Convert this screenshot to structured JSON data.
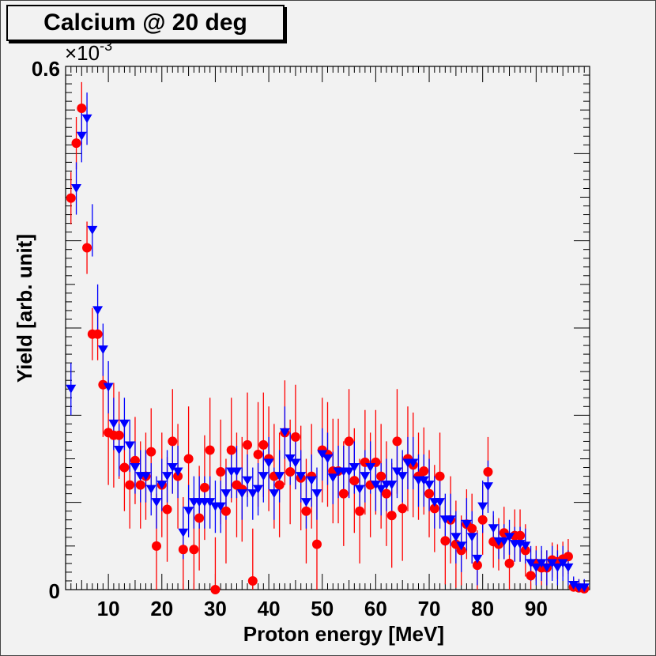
{
  "chart_data": {
    "type": "scatter",
    "title": "Calcium @ 20 deg",
    "xlabel": "Proton energy [MeV]",
    "ylabel": "Yield [arb. unit]",
    "y_multiplier": "×10",
    "y_exponent": "-3",
    "xlim": [
      2,
      100
    ],
    "ylim": [
      0,
      0.6
    ],
    "x_ticks": [
      10,
      20,
      30,
      40,
      50,
      60,
      70,
      80,
      90
    ],
    "y_tick_labels": [
      "0",
      "0.6"
    ],
    "series": [
      {
        "name": "red circles",
        "color": "#ff0000",
        "marker": "circle",
        "points": [
          [
            3,
            0.449,
            0.03
          ],
          [
            4,
            0.512,
            0.03
          ],
          [
            5,
            0.552,
            0.03
          ],
          [
            6,
            0.392,
            0.03
          ],
          [
            7,
            0.293,
            0.03
          ],
          [
            8,
            0.293,
            0.03
          ],
          [
            9,
            0.235,
            0.06
          ],
          [
            10,
            0.18,
            0.06
          ],
          [
            11,
            0.177,
            0.06
          ],
          [
            12,
            0.177,
            0.05
          ],
          [
            13,
            0.14,
            0.05
          ],
          [
            14,
            0.12,
            0.05
          ],
          [
            15,
            0.148,
            0.05
          ],
          [
            16,
            0.12,
            0.05
          ],
          [
            17,
            0.13,
            0.05
          ],
          [
            18,
            0.158,
            0.05
          ],
          [
            19,
            0.05,
            0.06
          ],
          [
            20,
            0.12,
            0.06
          ],
          [
            21,
            0.092,
            0.06
          ],
          [
            22,
            0.17,
            0.06
          ],
          [
            23,
            0.13,
            0.06
          ],
          [
            24,
            0.046,
            0.06
          ],
          [
            25,
            0.15,
            0.06
          ],
          [
            26,
            0.046,
            0.06
          ],
          [
            27,
            0.082,
            0.06
          ],
          [
            28,
            0.117,
            0.06
          ],
          [
            29,
            0.16,
            0.06
          ],
          [
            30,
            0,
            0.06
          ],
          [
            31,
            0.135,
            0.06
          ],
          [
            32,
            0.09,
            0.06
          ],
          [
            33,
            0.16,
            0.06
          ],
          [
            34,
            0.12,
            0.06
          ],
          [
            35,
            0.115,
            0.06
          ],
          [
            36,
            0.166,
            0.06
          ],
          [
            37,
            0.01,
            0.06
          ],
          [
            38,
            0.155,
            0.06
          ],
          [
            39,
            0.166,
            0.06
          ],
          [
            40,
            0.15,
            0.06
          ],
          [
            41,
            0.13,
            0.06
          ],
          [
            42,
            0.12,
            0.06
          ],
          [
            43,
            0.18,
            0.06
          ],
          [
            44,
            0.135,
            0.06
          ],
          [
            45,
            0.175,
            0.06
          ],
          [
            46,
            0.128,
            0.06
          ],
          [
            47,
            0.09,
            0.06
          ],
          [
            48,
            0.13,
            0.06
          ],
          [
            49,
            0.052,
            0.06
          ],
          [
            50,
            0.16,
            0.06
          ],
          [
            51,
            0.155,
            0.06
          ],
          [
            52,
            0.136,
            0.06
          ],
          [
            53,
            0.136,
            0.06
          ],
          [
            54,
            0.11,
            0.06
          ],
          [
            55,
            0.17,
            0.06
          ],
          [
            56,
            0.125,
            0.06
          ],
          [
            57,
            0.09,
            0.06
          ],
          [
            58,
            0.146,
            0.06
          ],
          [
            59,
            0.12,
            0.06
          ],
          [
            60,
            0.146,
            0.06
          ],
          [
            61,
            0.13,
            0.06
          ],
          [
            62,
            0.11,
            0.06
          ],
          [
            63,
            0.085,
            0.06
          ],
          [
            64,
            0.17,
            0.06
          ],
          [
            65,
            0.093,
            0.06
          ],
          [
            66,
            0.15,
            0.06
          ],
          [
            67,
            0.143,
            0.06
          ],
          [
            68,
            0.13,
            0.05
          ],
          [
            69,
            0.136,
            0.05
          ],
          [
            70,
            0.11,
            0.05
          ],
          [
            71,
            0.093,
            0.05
          ],
          [
            72,
            0.13,
            0.05
          ],
          [
            73,
            0.056,
            0.05
          ],
          [
            74,
            0.08,
            0.05
          ],
          [
            75,
            0.052,
            0.05
          ],
          [
            76,
            0.045,
            0.04
          ],
          [
            77,
            0.075,
            0.04
          ],
          [
            78,
            0.07,
            0.04
          ],
          [
            79,
            0.028,
            0.04
          ],
          [
            80,
            0.08,
            0.04
          ],
          [
            81,
            0.135,
            0.04
          ],
          [
            82,
            0.055,
            0.03
          ],
          [
            83,
            0.052,
            0.03
          ],
          [
            84,
            0.065,
            0.03
          ],
          [
            85,
            0.03,
            0.03
          ],
          [
            86,
            0.062,
            0.03
          ],
          [
            87,
            0.062,
            0.03
          ],
          [
            88,
            0.045,
            0.03
          ],
          [
            89,
            0.016,
            0.02
          ],
          [
            90,
            0.03,
            0.02
          ],
          [
            91,
            0.025,
            0.02
          ],
          [
            92,
            0.025,
            0.02
          ],
          [
            93,
            0.034,
            0.02
          ],
          [
            94,
            0.032,
            0.02
          ],
          [
            95,
            0.035,
            0.02
          ],
          [
            96,
            0.038,
            0.02
          ],
          [
            97,
            0.003,
            0.01
          ],
          [
            98,
            0.002,
            0.01
          ],
          [
            99,
            0.001,
            0.01
          ]
        ]
      },
      {
        "name": "blue triangles",
        "color": "#0000ff",
        "marker": "triangle-down",
        "points": [
          [
            3,
            0.23,
            0.03
          ],
          [
            4,
            0.46,
            0.03
          ],
          [
            5,
            0.52,
            0.03
          ],
          [
            6,
            0.54,
            0.03
          ],
          [
            7,
            0.412,
            0.03
          ],
          [
            8,
            0.32,
            0.03
          ],
          [
            9,
            0.275,
            0.03
          ],
          [
            10,
            0.232,
            0.03
          ],
          [
            11,
            0.19,
            0.03
          ],
          [
            12,
            0.16,
            0.03
          ],
          [
            13,
            0.19,
            0.03
          ],
          [
            14,
            0.165,
            0.03
          ],
          [
            15,
            0.14,
            0.03
          ],
          [
            16,
            0.13,
            0.03
          ],
          [
            17,
            0.13,
            0.03
          ],
          [
            18,
            0.115,
            0.03
          ],
          [
            19,
            0.1,
            0.03
          ],
          [
            20,
            0.12,
            0.03
          ],
          [
            21,
            0.13,
            0.03
          ],
          [
            22,
            0.14,
            0.03
          ],
          [
            23,
            0.135,
            0.03
          ],
          [
            24,
            0.065,
            0.03
          ],
          [
            25,
            0.09,
            0.03
          ],
          [
            26,
            0.1,
            0.03
          ],
          [
            27,
            0.1,
            0.03
          ],
          [
            28,
            0.1,
            0.03
          ],
          [
            29,
            0.1,
            0.03
          ],
          [
            30,
            0.095,
            0.03
          ],
          [
            31,
            0.095,
            0.03
          ],
          [
            32,
            0.11,
            0.03
          ],
          [
            33,
            0.135,
            0.03
          ],
          [
            34,
            0.135,
            0.03
          ],
          [
            35,
            0.11,
            0.03
          ],
          [
            36,
            0.125,
            0.03
          ],
          [
            37,
            0.11,
            0.03
          ],
          [
            38,
            0.115,
            0.03
          ],
          [
            39,
            0.13,
            0.03
          ],
          [
            40,
            0.145,
            0.03
          ],
          [
            41,
            0.11,
            0.03
          ],
          [
            42,
            0.13,
            0.03
          ],
          [
            43,
            0.18,
            0.03
          ],
          [
            44,
            0.15,
            0.03
          ],
          [
            45,
            0.145,
            0.03
          ],
          [
            46,
            0.13,
            0.03
          ],
          [
            47,
            0.1,
            0.03
          ],
          [
            48,
            0.125,
            0.03
          ],
          [
            49,
            0.11,
            0.03
          ],
          [
            50,
            0.155,
            0.03
          ],
          [
            51,
            0.15,
            0.03
          ],
          [
            52,
            0.128,
            0.03
          ],
          [
            53,
            0.135,
            0.03
          ],
          [
            54,
            0.135,
            0.03
          ],
          [
            55,
            0.135,
            0.03
          ],
          [
            56,
            0.14,
            0.03
          ],
          [
            57,
            0.115,
            0.03
          ],
          [
            58,
            0.13,
            0.03
          ],
          [
            59,
            0.14,
            0.03
          ],
          [
            60,
            0.12,
            0.03
          ],
          [
            61,
            0.115,
            0.03
          ],
          [
            62,
            0.12,
            0.03
          ],
          [
            63,
            0.12,
            0.03
          ],
          [
            64,
            0.135,
            0.03
          ],
          [
            65,
            0.13,
            0.03
          ],
          [
            66,
            0.145,
            0.03
          ],
          [
            67,
            0.145,
            0.03
          ],
          [
            68,
            0.125,
            0.03
          ],
          [
            69,
            0.125,
            0.03
          ],
          [
            70,
            0.12,
            0.03
          ],
          [
            71,
            0.1,
            0.03
          ],
          [
            72,
            0.1,
            0.03
          ],
          [
            73,
            0.08,
            0.03
          ],
          [
            74,
            0.08,
            0.03
          ],
          [
            75,
            0.06,
            0.03
          ],
          [
            76,
            0.05,
            0.03
          ],
          [
            77,
            0.075,
            0.03
          ],
          [
            78,
            0.06,
            0.03
          ],
          [
            79,
            0.035,
            0.03
          ],
          [
            80,
            0.095,
            0.03
          ],
          [
            81,
            0.118,
            0.03
          ],
          [
            82,
            0.07,
            0.02
          ],
          [
            83,
            0.055,
            0.02
          ],
          [
            84,
            0.055,
            0.02
          ],
          [
            85,
            0.06,
            0.02
          ],
          [
            86,
            0.052,
            0.02
          ],
          [
            87,
            0.052,
            0.02
          ],
          [
            88,
            0.05,
            0.02
          ],
          [
            89,
            0.03,
            0.02
          ],
          [
            90,
            0.025,
            0.02
          ],
          [
            91,
            0.03,
            0.02
          ],
          [
            92,
            0.025,
            0.02
          ],
          [
            93,
            0.03,
            0.02
          ],
          [
            94,
            0.025,
            0.02
          ],
          [
            95,
            0.03,
            0.02
          ],
          [
            96,
            0.025,
            0.02
          ],
          [
            97,
            0.005,
            0.01
          ],
          [
            98,
            0.002,
            0.01
          ],
          [
            99,
            0.002,
            0.01
          ]
        ]
      }
    ]
  }
}
